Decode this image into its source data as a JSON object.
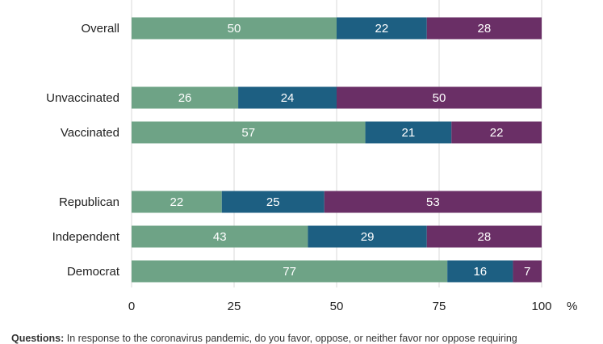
{
  "chart_data": {
    "type": "bar",
    "orientation": "horizontal",
    "stacked": true,
    "categories": [
      "Overall",
      "Unvaccinated",
      "Vaccinated",
      "Republican",
      "Independent",
      "Democrat"
    ],
    "groups": [
      [
        "Overall"
      ],
      [
        "Unvaccinated",
        "Vaccinated"
      ],
      [
        "Republican",
        "Independent",
        "Democrat"
      ]
    ],
    "series": [
      {
        "values": [
          50,
          26,
          57,
          22,
          43,
          77
        ],
        "color": "#6ea386"
      },
      {
        "values": [
          22,
          24,
          21,
          25,
          29,
          16
        ],
        "color": "#1d5f82"
      },
      {
        "values": [
          28,
          50,
          22,
          53,
          28,
          7
        ],
        "color": "#6a2f66"
      }
    ],
    "xlim": [
      0,
      100
    ],
    "xticks": [
      "0",
      "25",
      "50",
      "75",
      "100"
    ],
    "xunit": "%",
    "grid": true,
    "legend": "none"
  },
  "footnote": {
    "label": "Questions:",
    "text": "In response to the coronavirus pandemic, do you favor, oppose, or neither favor nor oppose requiring"
  }
}
